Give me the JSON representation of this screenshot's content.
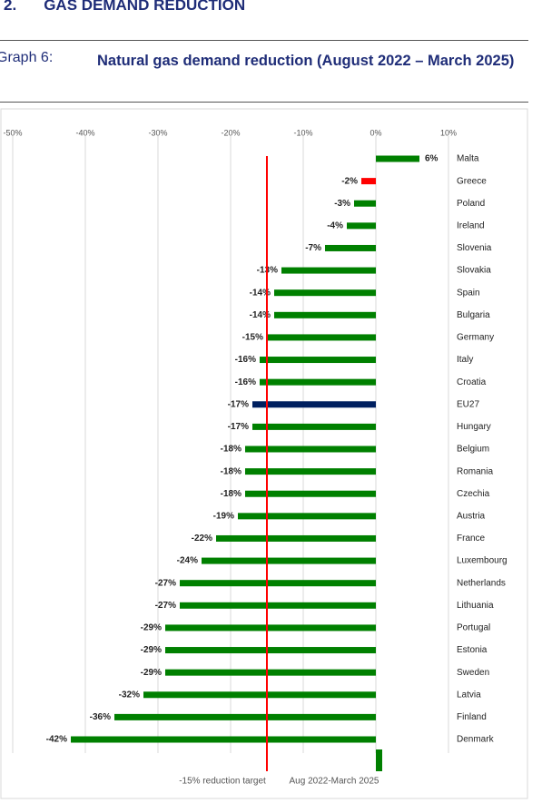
{
  "header": {
    "section_number": "2.",
    "section_title": "GAS DEMAND REDUCTION",
    "graph_label": "Graph 6:",
    "graph_title": "Natural gas demand reduction (August 2022 – March 2025)"
  },
  "chart_data": {
    "type": "bar",
    "orientation": "horizontal",
    "categories": [
      "Malta",
      "Greece",
      "Poland",
      "Ireland",
      "Slovenia",
      "Slovakia",
      "Spain",
      "Bulgaria",
      "Germany",
      "Italy",
      "Croatia",
      "EU27",
      "Hungary",
      "Belgium",
      "Romania",
      "Czechia",
      "Austria",
      "France",
      "Luxembourg",
      "Netherlands",
      "Lithuania",
      "Portugal",
      "Estonia",
      "Sweden",
      "Latvia",
      "Finland",
      "Denmark"
    ],
    "series": [
      {
        "name": "Aug 2022-March 2025",
        "color": "#008000",
        "values": [
          6,
          -2,
          -3,
          -4,
          -7,
          -13,
          -14,
          -14,
          -15,
          -16,
          -16,
          -17,
          -17,
          -18,
          -18,
          -18,
          -19,
          -22,
          -24,
          -27,
          -27,
          -29,
          -29,
          -29,
          -32,
          -36,
          -42
        ],
        "value_labels": [
          "6%",
          "-2%",
          "-3%",
          "-4%",
          "-7%",
          "-13%",
          "-14%",
          "-14%",
          "-15%",
          "-16%",
          "-16%",
          "-17%",
          "-17%",
          "-18%",
          "-18%",
          "-18%",
          "-19%",
          "-22%",
          "-24%",
          "-27%",
          "-27%",
          "-29%",
          "-29%",
          "-29%",
          "-32%",
          "-36%",
          "-42%"
        ],
        "point_colors": [
          "#008000",
          "#ff0000",
          "#008000",
          "#008000",
          "#008000",
          "#008000",
          "#008000",
          "#008000",
          "#008000",
          "#008000",
          "#008000",
          "#002060",
          "#008000",
          "#008000",
          "#008000",
          "#008000",
          "#008000",
          "#008000",
          "#008000",
          "#008000",
          "#008000",
          "#008000",
          "#008000",
          "#008000",
          "#008000",
          "#008000",
          "#008000"
        ]
      }
    ],
    "reference_line": {
      "value": -15,
      "label": "-15% reduction target",
      "color": "#ff0000"
    },
    "xlim": [
      -50,
      10
    ],
    "xticks": [
      {
        "value": -50,
        "label": "-50%"
      },
      {
        "value": -40,
        "label": "-40%"
      },
      {
        "value": -30,
        "label": "-30%"
      },
      {
        "value": -20,
        "label": "-20%"
      },
      {
        "value": -10,
        "label": "-10%"
      },
      {
        "value": 0,
        "label": "0%"
      },
      {
        "value": 10,
        "label": "10%"
      }
    ],
    "grid": true,
    "legend": "bottom"
  }
}
